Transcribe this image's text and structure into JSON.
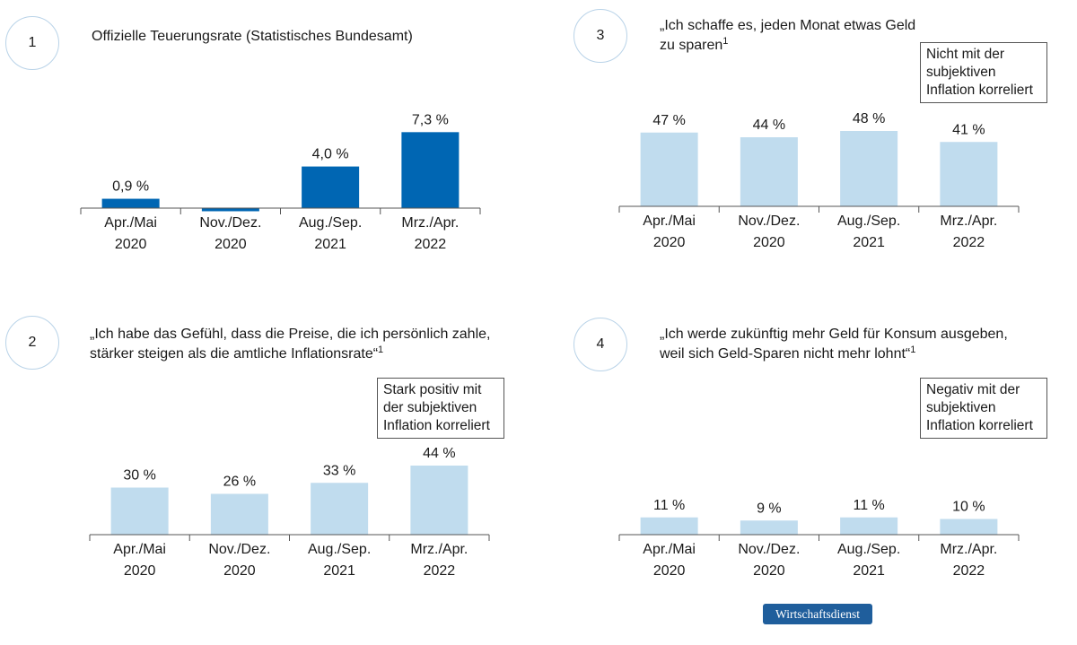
{
  "brand_label": "Wirtschaftsdienst",
  "colors": {
    "dark_bar": "#0066b3",
    "light_bar": "#c0dcee",
    "axis": "#555555"
  },
  "chart_data": [
    {
      "number": "1",
      "type": "bar",
      "title": "Offizielle Teuerungsrate (Statistisches Bundesamt)",
      "title_sup": "",
      "note": "",
      "categories": [
        [
          "Apr./Mai",
          "2020"
        ],
        [
          "Nov./Dez.",
          "2020"
        ],
        [
          "Aug./Sep.",
          "2021"
        ],
        [
          "Mrz./Apr.",
          "2022"
        ]
      ],
      "values": [
        0.9,
        -0.3,
        4.0,
        7.3
      ],
      "value_labels": [
        "0,9 %",
        "",
        "4,0 %",
        "7,3 %"
      ],
      "unit": "%",
      "bar_color": "dark"
    },
    {
      "number": "2",
      "type": "bar",
      "title": "„Ich habe das Gefühl, dass die Preise, die ich persönlich zahle, stärker steigen als die amtliche Inflationsrate“",
      "title_sup": "1",
      "note": "Stark positiv mit der subjektiven Inflation korreliert",
      "categories": [
        [
          "Apr./Mai",
          "2020"
        ],
        [
          "Nov./Dez.",
          "2020"
        ],
        [
          "Aug./Sep.",
          "2021"
        ],
        [
          "Mrz./Apr.",
          "2022"
        ]
      ],
      "values": [
        30,
        26,
        33,
        44
      ],
      "value_labels": [
        "30 %",
        "26 %",
        "33 %",
        "44 %"
      ],
      "unit": "%",
      "bar_color": "light"
    },
    {
      "number": "3",
      "type": "bar",
      "title": "„Ich schaffe es, jeden Monat etwas Geld zu sparen",
      "title_sup": "1",
      "note": "Nicht mit der subjektiven Inflation korreliert",
      "categories": [
        [
          "Apr./Mai",
          "2020"
        ],
        [
          "Nov./Dez.",
          "2020"
        ],
        [
          "Aug./Sep.",
          "2021"
        ],
        [
          "Mrz./Apr.",
          "2022"
        ]
      ],
      "values": [
        47,
        44,
        48,
        41
      ],
      "value_labels": [
        "47 %",
        "44 %",
        "48 %",
        "41 %"
      ],
      "unit": "%",
      "bar_color": "light"
    },
    {
      "number": "4",
      "type": "bar",
      "title": "„Ich werde zukünftig mehr Geld für Konsum ausgeben, weil sich Geld-Sparen nicht mehr lohnt“",
      "title_sup": "1",
      "note": "Negativ mit der subjektiven Inflation korreliert",
      "categories": [
        [
          "Apr./Mai",
          "2020"
        ],
        [
          "Nov./Dez.",
          "2020"
        ],
        [
          "Aug./Sep.",
          "2021"
        ],
        [
          "Mrz./Apr.",
          "2022"
        ]
      ],
      "values": [
        11,
        9,
        11,
        10
      ],
      "value_labels": [
        "11 %",
        "9 %",
        "11 %",
        "10 %"
      ],
      "unit": "%",
      "bar_color": "light"
    }
  ]
}
